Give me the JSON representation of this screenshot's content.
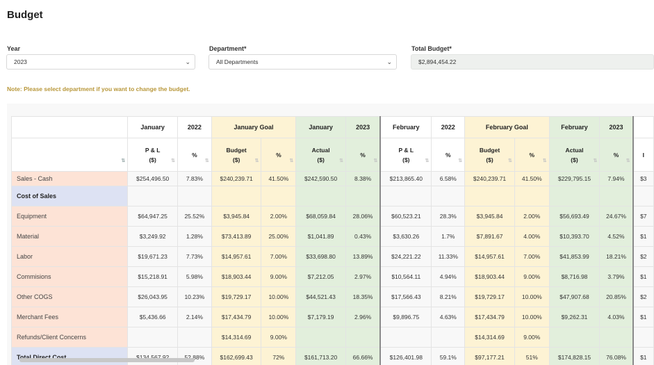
{
  "page_title": "Budget",
  "filters": {
    "year_label": "Year",
    "year_value": "2023",
    "department_label": "Department*",
    "department_value": "All Departments",
    "total_budget_label": "Total Budget*",
    "total_budget_value": "$2,894,454.22"
  },
  "note": "Note: Please select department if you want to change the budget.",
  "table": {
    "top_headers": [
      {
        "label": "January",
        "span": 1
      },
      {
        "label": "2022",
        "span": 1
      },
      {
        "label": "January Goal",
        "span": 2
      },
      {
        "label": "January",
        "span": 1
      },
      {
        "label": "2023",
        "span": 1
      },
      {
        "label": "February",
        "span": 1
      },
      {
        "label": "2022",
        "span": 1
      },
      {
        "label": "February Goal",
        "span": 2
      },
      {
        "label": "February",
        "span": 1
      },
      {
        "label": "2023",
        "span": 1
      },
      {
        "label": "",
        "span": 1
      }
    ],
    "sub_headers": [
      {
        "l1": "P & L",
        "l2": "($)"
      },
      {
        "l1": "%",
        "l2": ""
      },
      {
        "l1": "Budget",
        "l2": "($)"
      },
      {
        "l1": "%",
        "l2": ""
      },
      {
        "l1": "Actual",
        "l2": "($)"
      },
      {
        "l1": "%",
        "l2": ""
      },
      {
        "l1": "P & L",
        "l2": "($)"
      },
      {
        "l1": "%",
        "l2": ""
      },
      {
        "l1": "Budget",
        "l2": "($)"
      },
      {
        "l1": "%",
        "l2": ""
      },
      {
        "l1": "Actual",
        "l2": "($)"
      },
      {
        "l1": "%",
        "l2": ""
      },
      {
        "l1": "I",
        "l2": ""
      }
    ],
    "rows": [
      {
        "label": "Sales - Cash",
        "cells": [
          "$254,496.50",
          "7.83%",
          "$240,239.71",
          "41.50%",
          "$242,590.50",
          "8.38%",
          "$213,865.40",
          "6.58%",
          "$240,239.71",
          "41.50%",
          "$229,795.15",
          "7.94%",
          "$3"
        ]
      },
      {
        "label": "Cost of Sales",
        "cells": [
          "",
          "",
          "",
          "",
          "",
          "",
          "",
          "",
          "",
          "",
          "",
          "",
          ""
        ]
      },
      {
        "label": "Equipment",
        "cells": [
          "$64,947.25",
          "25.52%",
          "$3,945.84",
          "2.00%",
          "$68,059.84",
          "28.06%",
          "$60,523.21",
          "28.3%",
          "$3,945.84",
          "2.00%",
          "$56,693.49",
          "24.67%",
          "$7"
        ]
      },
      {
        "label": "Material",
        "cells": [
          "$3,249.92",
          "1.28%",
          "$73,413.89",
          "25.00%",
          "$1,041.89",
          "0.43%",
          "$3,630.26",
          "1.7%",
          "$7,891.67",
          "4.00%",
          "$10,393.70",
          "4.52%",
          "$1"
        ]
      },
      {
        "label": "Labor",
        "cells": [
          "$19,671.23",
          "7.73%",
          "$14,957.61",
          "7.00%",
          "$33,698.80",
          "13.89%",
          "$24,221.22",
          "11.33%",
          "$14,957.61",
          "7.00%",
          "$41,853.99",
          "18.21%",
          "$2"
        ]
      },
      {
        "label": "Commisions",
        "cells": [
          "$15,218.91",
          "5.98%",
          "$18,903.44",
          "9.00%",
          "$7,212.05",
          "2.97%",
          "$10,564.11",
          "4.94%",
          "$18,903.44",
          "9.00%",
          "$8,716.98",
          "3.79%",
          "$1"
        ]
      },
      {
        "label": "Other COGS",
        "cells": [
          "$26,043.95",
          "10.23%",
          "$19,729.17",
          "10.00%",
          "$44,521.43",
          "18.35%",
          "$17,566.43",
          "8.21%",
          "$19,729.17",
          "10.00%",
          "$47,907.68",
          "20.85%",
          "$2"
        ]
      },
      {
        "label": "Merchant Fees",
        "cells": [
          "$5,436.66",
          "2.14%",
          "$17,434.79",
          "10.00%",
          "$7,179.19",
          "2.96%",
          "$9,896.75",
          "4.63%",
          "$17,434.79",
          "10.00%",
          "$9,262.31",
          "4.03%",
          "$1"
        ]
      },
      {
        "label": "Refunds/Client Concerns",
        "cells": [
          "",
          "",
          "$14,314.69",
          "9.00%",
          "",
          "",
          "",
          "",
          "$14,314.69",
          "9.00%",
          "",
          "",
          ""
        ]
      },
      {
        "label": "Total Direct Cost",
        "cells": [
          "$134,567.92",
          "52.88%",
          "$162,699.43",
          "72%",
          "$161,713.20",
          "66.66%",
          "$126,401.98",
          "59.1%",
          "$97,177.21",
          "51%",
          "$174,828.15",
          "76.08%",
          "$1"
        ]
      }
    ]
  }
}
